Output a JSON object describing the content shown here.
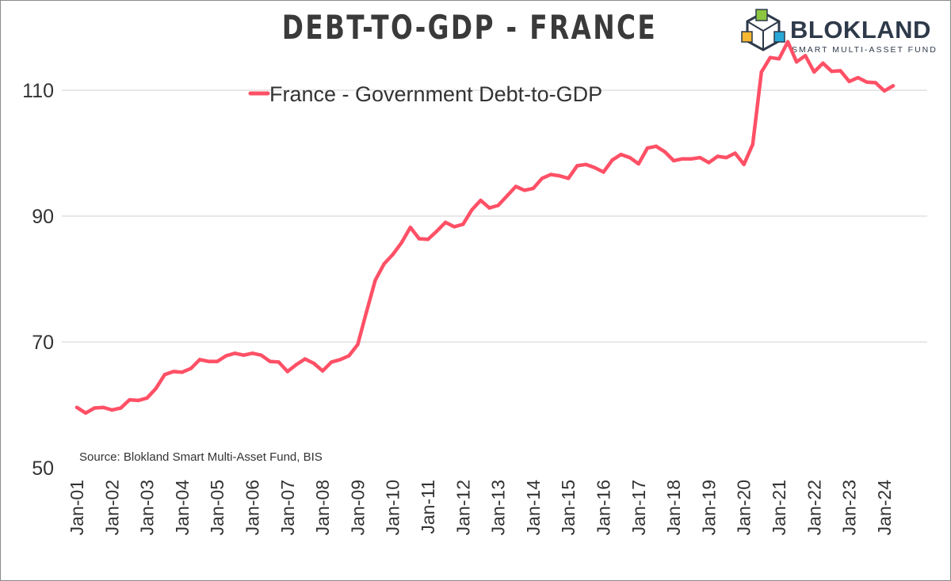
{
  "title": "DEBT-TO-GDP - FRANCE",
  "logo": {
    "name": "BLOKLAND",
    "tagline": "SMART MULTI-ASSET FUND"
  },
  "source": "Source: Blokland Smart Multi-Asset Fund, BIS",
  "colors": {
    "line": "#ff5066",
    "grid": "#d9d9d9",
    "text": "#333333",
    "title": "#3a3a3a"
  },
  "chart_data": {
    "type": "line",
    "title": "DEBT-TO-GDP - FRANCE",
    "xlabel": "",
    "ylabel": "",
    "ylim": [
      50,
      120
    ],
    "yticks": [
      50,
      70,
      90,
      110
    ],
    "grid": true,
    "legend_position": "top-center",
    "xtick_labels": [
      "Jan-01",
      "Jan-02",
      "Jan-03",
      "Jan-04",
      "Jan-05",
      "Jan-06",
      "Jan-07",
      "Jan-08",
      "Jan-09",
      "Jan-10",
      "Jan-11",
      "Jan-12",
      "Jan-13",
      "Jan-14",
      "Jan-15",
      "Jan-16",
      "Jan-17",
      "Jan-18",
      "Jan-19",
      "Jan-20",
      "Jan-21",
      "Jan-22",
      "Jan-23",
      "Jan-24"
    ],
    "series": [
      {
        "name": "France - Government Debt-to-GDP",
        "start": "Jan-01",
        "frequency": "quarterly",
        "values": [
          59.6,
          58.7,
          59.5,
          59.6,
          59.2,
          59.5,
          60.8,
          60.7,
          61.1,
          62.6,
          64.8,
          65.3,
          65.2,
          65.8,
          67.2,
          66.9,
          66.9,
          67.8,
          68.2,
          67.9,
          68.2,
          67.9,
          66.9,
          66.8,
          65.3,
          66.4,
          67.3,
          66.6,
          65.4,
          66.8,
          67.2,
          67.8,
          69.6,
          74.8,
          79.8,
          82.4,
          83.9,
          85.8,
          88.2,
          86.4,
          86.3,
          87.6,
          89.0,
          88.3,
          88.7,
          91.0,
          92.5,
          91.3,
          91.7,
          93.2,
          94.7,
          94.1,
          94.4,
          96.0,
          96.6,
          96.4,
          96.0,
          98.0,
          98.2,
          97.7,
          97.0,
          98.9,
          99.8,
          99.3,
          98.3,
          100.8,
          101.1,
          100.2,
          98.8,
          99.1,
          99.1,
          99.3,
          98.5,
          99.5,
          99.3,
          100.0,
          98.2,
          101.4,
          112.9,
          115.2,
          115.0,
          117.7,
          114.5,
          115.5,
          112.9,
          114.3,
          113.0,
          113.1,
          111.4,
          112.0,
          111.3,
          111.2,
          109.9,
          110.7
        ]
      }
    ]
  }
}
